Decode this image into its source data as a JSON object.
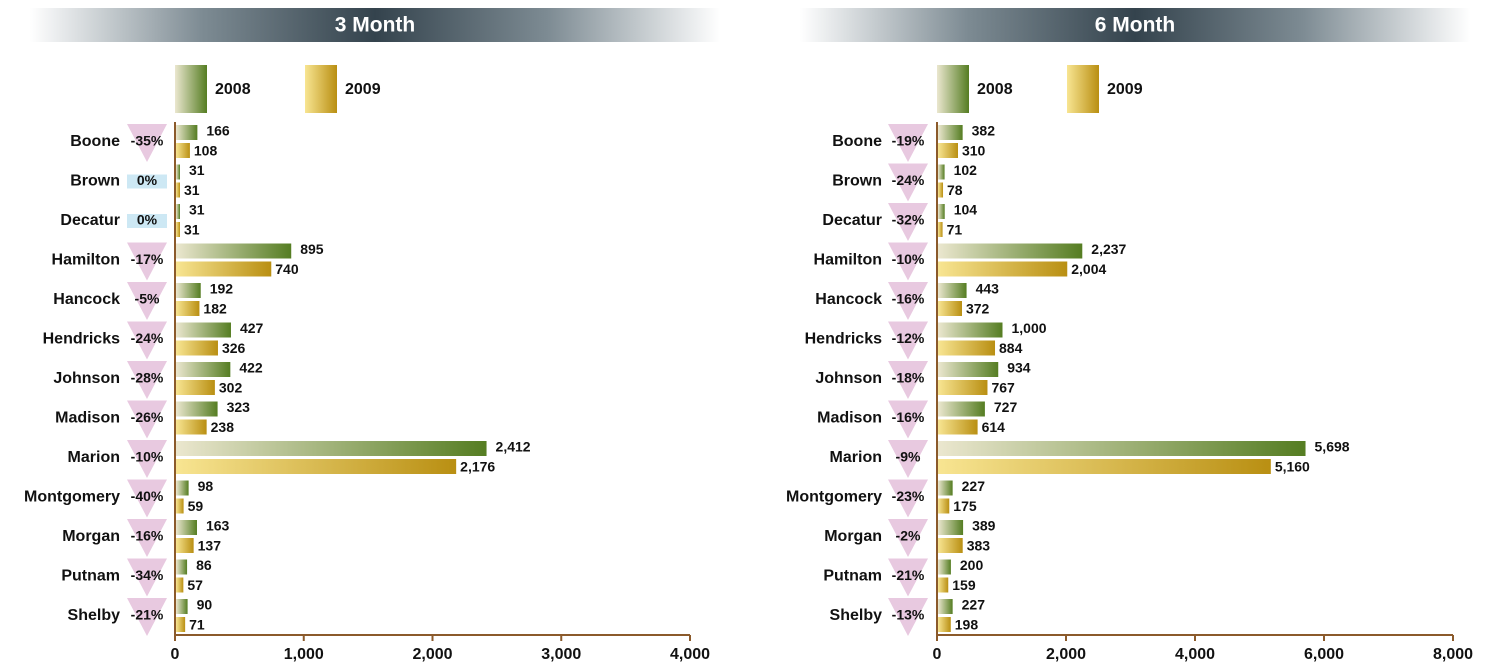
{
  "chart_data": [
    {
      "type": "bar",
      "title": "3 Month",
      "categories": [
        "Boone",
        "Brown",
        "Decatur",
        "Hamilton",
        "Hancock",
        "Hendricks",
        "Johnson",
        "Madison",
        "Marion",
        "Montgomery",
        "Morgan",
        "Putnam",
        "Shelby"
      ],
      "series": [
        {
          "name": "2008",
          "color": "#557d22",
          "values": [
            166,
            31,
            31,
            895,
            192,
            427,
            422,
            323,
            2412,
            98,
            163,
            86,
            90
          ],
          "value_labels": [
            "166",
            "31",
            "31",
            "895",
            "192",
            "427",
            "422",
            "323",
            "2,412",
            "98",
            "163",
            "86",
            "90"
          ]
        },
        {
          "name": "2009",
          "color": "#b98f12",
          "values": [
            108,
            31,
            31,
            740,
            182,
            326,
            302,
            238,
            2176,
            59,
            137,
            57,
            71
          ],
          "value_labels": [
            "108",
            "31",
            "31",
            "740",
            "182",
            "326",
            "302",
            "238",
            "2,176",
            "59",
            "137",
            "57",
            "71"
          ]
        }
      ],
      "changes": [
        -35,
        0,
        0,
        -17,
        -5,
        -24,
        -28,
        -26,
        -10,
        -40,
        -16,
        -34,
        -21
      ],
      "change_labels": [
        "-35%",
        "0%",
        "0%",
        "-17%",
        "-5%",
        "-24%",
        "-28%",
        "-26%",
        "-10%",
        "-40%",
        "-16%",
        "-34%",
        "-21%"
      ],
      "xlim": [
        0,
        4000
      ],
      "xticks": [
        0,
        {
          "value": 1000,
          "label": "1,000"
        },
        {
          "value": 2000,
          "label": "2,000"
        },
        {
          "value": 3000,
          "label": "3,000"
        },
        {
          "value": 4000,
          "label": "4,000"
        }
      ]
    },
    {
      "type": "bar",
      "title": "6 Month",
      "categories": [
        "Boone",
        "Brown",
        "Decatur",
        "Hamilton",
        "Hancock",
        "Hendricks",
        "Johnson",
        "Madison",
        "Marion",
        "Montgomery",
        "Morgan",
        "Putnam",
        "Shelby"
      ],
      "series": [
        {
          "name": "2008",
          "color": "#557d22",
          "values": [
            382,
            102,
            104,
            2237,
            443,
            1000,
            934,
            727,
            5698,
            227,
            389,
            200,
            227
          ],
          "value_labels": [
            "382",
            "102",
            "104",
            "2,237",
            "443",
            "1,000",
            "934",
            "727",
            "5,698",
            "227",
            "389",
            "200",
            "227"
          ]
        },
        {
          "name": "2009",
          "color": "#b98f12",
          "values": [
            310,
            78,
            71,
            2004,
            372,
            884,
            767,
            614,
            5160,
            175,
            383,
            159,
            198
          ],
          "value_labels": [
            "310",
            "78",
            "71",
            "2,004",
            "372",
            "884",
            "767",
            "614",
            "5,160",
            "175",
            "383",
            "159",
            "198"
          ]
        }
      ],
      "changes": [
        -19,
        -24,
        -32,
        -10,
        -16,
        -12,
        -18,
        -16,
        -9,
        -23,
        -2,
        -21,
        -13
      ],
      "change_labels": [
        "-19%",
        "-24%",
        "-32%",
        "-10%",
        "-16%",
        "-12%",
        "-18%",
        "-16%",
        "-9%",
        "-23%",
        "-2%",
        "-21%",
        "-13%"
      ],
      "xlim": [
        0,
        8000
      ],
      "xticks": [
        0,
        {
          "value": 2000,
          "label": "2,000"
        },
        {
          "value": 4000,
          "label": "4,000"
        },
        {
          "value": 6000,
          "label": "6,000"
        },
        {
          "value": 8000,
          "label": "8,000"
        }
      ]
    }
  ]
}
